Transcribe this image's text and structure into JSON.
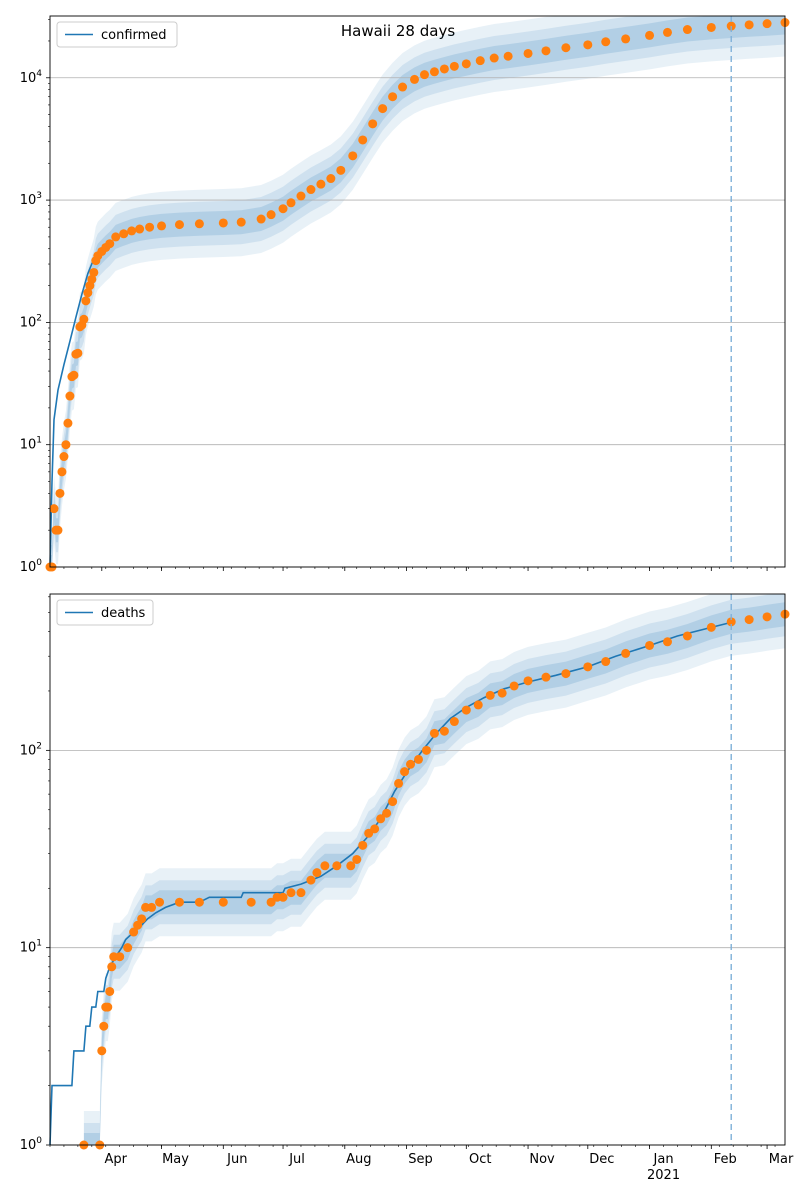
{
  "title": "Hawaii 28 days",
  "colors": {
    "model": "#1f77b4",
    "observed": "#ff7f0e",
    "band": "#1f77b4",
    "grid": "#b0b0b0",
    "forecast_line": "#7fb1d9"
  },
  "x_axis": {
    "start_date": "2020-03-06",
    "end_date": "2021-03-10",
    "month_labels": [
      {
        "label": "Apr",
        "date": "2020-04-01"
      },
      {
        "label": "May",
        "date": "2020-05-01"
      },
      {
        "label": "Jun",
        "date": "2020-06-01"
      },
      {
        "label": "Jul",
        "date": "2020-07-01"
      },
      {
        "label": "Aug",
        "date": "2020-08-01"
      },
      {
        "label": "Sep",
        "date": "2020-09-01"
      },
      {
        "label": "Oct",
        "date": "2020-10-01"
      },
      {
        "label": "Nov",
        "date": "2020-11-01"
      },
      {
        "label": "Dec",
        "date": "2020-12-01"
      },
      {
        "label": "Jan",
        "date": "2021-01-01"
      },
      {
        "label": "Feb",
        "date": "2021-02-01"
      },
      {
        "label": "Mar",
        "date": "2021-03-01"
      }
    ],
    "year_label": "2021",
    "forecast_date": "2021-02-11"
  },
  "chart_data": [
    {
      "type": "line",
      "legend": "confirmed",
      "legend_placement": "top-left",
      "yscale": "log",
      "ylim": [
        1,
        32000
      ],
      "y_ticks": [
        {
          "value": 1,
          "base": "10",
          "exp": "0"
        },
        {
          "value": 10,
          "base": "10",
          "exp": "1"
        },
        {
          "value": 100,
          "base": "10",
          "exp": "2"
        },
        {
          "value": 1000,
          "base": "10",
          "exp": "3"
        },
        {
          "value": 10000,
          "base": "10",
          "exp": "4"
        }
      ],
      "grid": true,
      "model": [
        [
          "2020-03-06",
          1
        ],
        [
          "2020-03-07",
          5
        ],
        [
          "2020-03-08",
          16
        ],
        [
          "2020-03-10",
          28
        ],
        [
          "2020-03-13",
          45
        ],
        [
          "2020-03-16",
          70
        ],
        [
          "2020-03-19",
          110
        ],
        [
          "2020-03-22",
          170
        ],
        [
          "2020-03-25",
          250
        ],
        [
          "2020-03-28",
          330
        ],
        [
          "2020-04-01",
          400
        ]
      ],
      "observed": [
        [
          "2020-03-06",
          1
        ],
        [
          "2020-03-07",
          1
        ],
        [
          "2020-03-08",
          3
        ],
        [
          "2020-03-09",
          2
        ],
        [
          "2020-03-10",
          2
        ],
        [
          "2020-03-11",
          4
        ],
        [
          "2020-03-12",
          6
        ],
        [
          "2020-03-13",
          8
        ],
        [
          "2020-03-14",
          10
        ],
        [
          "2020-03-15",
          15
        ],
        [
          "2020-03-16",
          25
        ],
        [
          "2020-03-17",
          36
        ],
        [
          "2020-03-18",
          37
        ],
        [
          "2020-03-19",
          55
        ],
        [
          "2020-03-20",
          56
        ],
        [
          "2020-03-21",
          92
        ],
        [
          "2020-03-22",
          95
        ],
        [
          "2020-03-23",
          106
        ],
        [
          "2020-03-24",
          150
        ],
        [
          "2020-03-25",
          175
        ],
        [
          "2020-03-26",
          200
        ],
        [
          "2020-03-27",
          225
        ],
        [
          "2020-03-28",
          256
        ],
        [
          "2020-03-29",
          320
        ],
        [
          "2020-03-30",
          350
        ],
        [
          "2020-04-01",
          380
        ],
        [
          "2020-04-03",
          410
        ],
        [
          "2020-04-05",
          440
        ],
        [
          "2020-04-08",
          500
        ],
        [
          "2020-04-12",
          530
        ],
        [
          "2020-04-16",
          560
        ],
        [
          "2020-04-20",
          580
        ],
        [
          "2020-04-25",
          600
        ],
        [
          "2020-05-01",
          615
        ],
        [
          "2020-05-10",
          630
        ],
        [
          "2020-05-20",
          640
        ],
        [
          "2020-06-01",
          650
        ],
        [
          "2020-06-10",
          660
        ],
        [
          "2020-06-20",
          700
        ],
        [
          "2020-06-25",
          760
        ],
        [
          "2020-07-01",
          850
        ],
        [
          "2020-07-05",
          950
        ],
        [
          "2020-07-10",
          1080
        ],
        [
          "2020-07-15",
          1220
        ],
        [
          "2020-07-20",
          1350
        ],
        [
          "2020-07-25",
          1500
        ],
        [
          "2020-07-30",
          1750
        ],
        [
          "2020-08-05",
          2300
        ],
        [
          "2020-08-10",
          3100
        ],
        [
          "2020-08-15",
          4200
        ],
        [
          "2020-08-20",
          5600
        ],
        [
          "2020-08-25",
          7000
        ],
        [
          "2020-08-30",
          8400
        ],
        [
          "2020-09-05",
          9700
        ],
        [
          "2020-09-10",
          10600
        ],
        [
          "2020-09-15",
          11200
        ],
        [
          "2020-09-20",
          11800
        ],
        [
          "2020-09-25",
          12400
        ],
        [
          "2020-10-01",
          13000
        ],
        [
          "2020-10-08",
          13800
        ],
        [
          "2020-10-15",
          14500
        ],
        [
          "2020-10-22",
          15000
        ],
        [
          "2020-11-01",
          15800
        ],
        [
          "2020-11-10",
          16600
        ],
        [
          "2020-11-20",
          17600
        ],
        [
          "2020-12-01",
          18600
        ],
        [
          "2020-12-10",
          19700
        ],
        [
          "2020-12-20",
          20800
        ],
        [
          "2021-01-01",
          22200
        ],
        [
          "2021-01-10",
          23500
        ],
        [
          "2021-01-20",
          24800
        ],
        [
          "2021-02-01",
          25800
        ],
        [
          "2021-02-11",
          26500
        ],
        [
          "2021-02-20",
          27100
        ],
        [
          "2021-03-01",
          27700
        ],
        [
          "2021-03-10",
          28300
        ]
      ]
    },
    {
      "type": "line",
      "legend": "deaths",
      "legend_placement": "top-left",
      "yscale": "log",
      "ylim": [
        1,
        620
      ],
      "y_ticks": [
        {
          "value": 1,
          "base": "10",
          "exp": "0"
        },
        {
          "value": 10,
          "base": "10",
          "exp": "1"
        },
        {
          "value": 100,
          "base": "10",
          "exp": "2"
        }
      ],
      "grid": true,
      "model": [
        [
          "2020-03-06",
          1
        ],
        [
          "2020-03-07",
          2
        ],
        [
          "2020-03-17",
          2
        ],
        [
          "2020-03-18",
          3
        ],
        [
          "2020-03-23",
          3
        ],
        [
          "2020-03-24",
          4
        ],
        [
          "2020-03-26",
          4
        ],
        [
          "2020-03-27",
          5
        ],
        [
          "2020-03-29",
          5
        ],
        [
          "2020-03-30",
          6
        ],
        [
          "2020-04-02",
          6
        ],
        [
          "2020-04-03",
          7
        ],
        [
          "2020-04-05",
          8
        ],
        [
          "2020-04-08",
          9
        ],
        [
          "2020-04-11",
          10
        ],
        [
          "2020-04-13",
          11
        ],
        [
          "2020-04-17",
          12
        ],
        [
          "2020-04-21",
          13
        ],
        [
          "2020-04-24",
          14
        ],
        [
          "2020-04-28",
          15
        ],
        [
          "2020-05-03",
          16
        ],
        [
          "2020-05-10",
          17
        ],
        [
          "2020-05-20",
          17
        ],
        [
          "2020-05-25",
          18
        ],
        [
          "2020-06-10",
          18
        ],
        [
          "2020-06-11",
          19
        ],
        [
          "2020-07-01",
          19
        ],
        [
          "2020-07-02",
          20
        ],
        [
          "2020-07-10",
          21
        ],
        [
          "2020-07-20",
          23
        ],
        [
          "2020-07-28",
          26
        ],
        [
          "2020-08-05",
          30
        ],
        [
          "2020-08-12",
          36
        ],
        [
          "2020-08-19",
          45
        ],
        [
          "2020-08-26",
          62
        ],
        [
          "2020-09-02",
          80
        ],
        [
          "2020-09-09",
          100
        ],
        [
          "2020-09-16",
          122
        ],
        [
          "2020-09-23",
          145
        ],
        [
          "2020-10-01",
          165
        ],
        [
          "2020-10-10",
          185
        ],
        [
          "2020-10-20",
          205
        ],
        [
          "2020-11-01",
          222
        ],
        [
          "2020-11-15",
          240
        ],
        [
          "2020-12-01",
          265
        ],
        [
          "2020-12-15",
          300
        ],
        [
          "2021-01-01",
          340
        ],
        [
          "2021-01-15",
          380
        ],
        [
          "2021-02-01",
          420
        ],
        [
          "2021-02-11",
          445
        ]
      ],
      "observed": [
        [
          "2020-03-23",
          1
        ],
        [
          "2020-03-31",
          1
        ],
        [
          "2020-04-01",
          3
        ],
        [
          "2020-04-02",
          4
        ],
        [
          "2020-04-03",
          5
        ],
        [
          "2020-04-04",
          5
        ],
        [
          "2020-04-05",
          6
        ],
        [
          "2020-04-06",
          8
        ],
        [
          "2020-04-07",
          9
        ],
        [
          "2020-04-10",
          9
        ],
        [
          "2020-04-14",
          10
        ],
        [
          "2020-04-17",
          12
        ],
        [
          "2020-04-19",
          13
        ],
        [
          "2020-04-21",
          14
        ],
        [
          "2020-04-23",
          16
        ],
        [
          "2020-04-26",
          16
        ],
        [
          "2020-04-30",
          17
        ],
        [
          "2020-05-10",
          17
        ],
        [
          "2020-05-20",
          17
        ],
        [
          "2020-06-01",
          17
        ],
        [
          "2020-06-15",
          17
        ],
        [
          "2020-06-25",
          17
        ],
        [
          "2020-06-28",
          18
        ],
        [
          "2020-07-01",
          18
        ],
        [
          "2020-07-05",
          19
        ],
        [
          "2020-07-10",
          19
        ],
        [
          "2020-07-15",
          22
        ],
        [
          "2020-07-18",
          24
        ],
        [
          "2020-07-22",
          26
        ],
        [
          "2020-07-28",
          26
        ],
        [
          "2020-08-04",
          26
        ],
        [
          "2020-08-07",
          28
        ],
        [
          "2020-08-10",
          33
        ],
        [
          "2020-08-13",
          38
        ],
        [
          "2020-08-16",
          40
        ],
        [
          "2020-08-19",
          45
        ],
        [
          "2020-08-22",
          48
        ],
        [
          "2020-08-25",
          55
        ],
        [
          "2020-08-28",
          68
        ],
        [
          "2020-08-31",
          78
        ],
        [
          "2020-09-03",
          85
        ],
        [
          "2020-09-07",
          90
        ],
        [
          "2020-09-11",
          100
        ],
        [
          "2020-09-15",
          122
        ],
        [
          "2020-09-20",
          125
        ],
        [
          "2020-09-25",
          140
        ],
        [
          "2020-10-01",
          160
        ],
        [
          "2020-10-07",
          170
        ],
        [
          "2020-10-13",
          190
        ],
        [
          "2020-10-19",
          195
        ],
        [
          "2020-10-25",
          212
        ],
        [
          "2020-11-01",
          225
        ],
        [
          "2020-11-10",
          235
        ],
        [
          "2020-11-20",
          245
        ],
        [
          "2020-12-01",
          265
        ],
        [
          "2020-12-10",
          282
        ],
        [
          "2020-12-20",
          310
        ],
        [
          "2021-01-01",
          340
        ],
        [
          "2021-01-10",
          355
        ],
        [
          "2021-01-20",
          380
        ],
        [
          "2021-02-01",
          420
        ],
        [
          "2021-02-11",
          448
        ],
        [
          "2021-02-20",
          460
        ],
        [
          "2021-03-01",
          475
        ],
        [
          "2021-03-10",
          490
        ]
      ]
    }
  ]
}
